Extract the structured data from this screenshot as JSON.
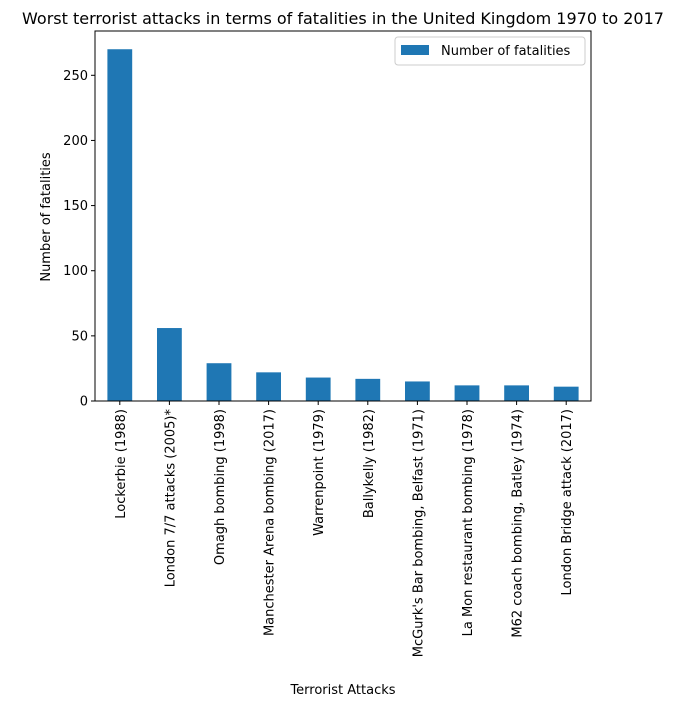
{
  "chart_data": {
    "type": "bar",
    "title": "Worst terrorist attacks in terms of fatalities in the United Kingdom 1970 to 2017",
    "xlabel": "Terrorist Attacks",
    "ylabel": "Number of fatalities",
    "categories": [
      "Lockerbie (1988)",
      "London 7/7 attacks (2005)*",
      "Omagh bombing (1998)",
      "Manchester Arena bombing (2017)",
      "Warrenpoint (1979)",
      "Ballykelly (1982)",
      "McGurk's Bar bombing, Belfast (1971)",
      "La Mon restaurant bombing (1978)",
      "M62 coach bombing, Batley (1974)",
      "London Bridge attack (2017)"
    ],
    "series": [
      {
        "name": "Number of fatalities",
        "color": "#1f77b4",
        "values": [
          270,
          56,
          29,
          22,
          18,
          17,
          15,
          12,
          12,
          11
        ]
      }
    ],
    "ylim": [
      0,
      284
    ],
    "yticks": [
      0,
      50,
      100,
      150,
      200,
      250
    ],
    "grid": false,
    "legend_position": "top-right"
  }
}
